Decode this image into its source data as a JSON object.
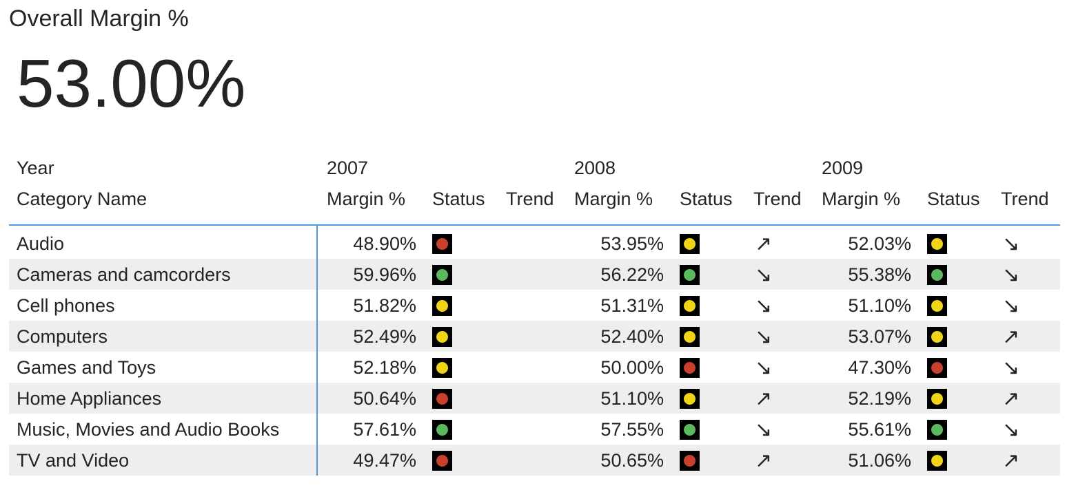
{
  "card": {
    "title": "Overall Margin %",
    "value": "53.00%"
  },
  "table": {
    "year_label": "Year",
    "row_label": "Category Name",
    "years": [
      "2007",
      "2008",
      "2009"
    ],
    "columns": [
      "Margin %",
      "Status",
      "Trend"
    ],
    "rows": [
      {
        "category": "Audio",
        "cells": [
          {
            "margin": "48.90%",
            "status": "#c9402f",
            "trend": null
          },
          {
            "margin": "53.95%",
            "status": "#f0d418",
            "trend": "↗"
          },
          {
            "margin": "52.03%",
            "status": "#f0d418",
            "trend": "↘"
          }
        ]
      },
      {
        "category": "Cameras and camcorders",
        "cells": [
          {
            "margin": "59.96%",
            "status": "#5cb85c",
            "trend": null
          },
          {
            "margin": "56.22%",
            "status": "#5cb85c",
            "trend": "↘"
          },
          {
            "margin": "55.38%",
            "status": "#5cb85c",
            "trend": "↘"
          }
        ]
      },
      {
        "category": "Cell phones",
        "cells": [
          {
            "margin": "51.82%",
            "status": "#f0d418",
            "trend": null
          },
          {
            "margin": "51.31%",
            "status": "#f0d418",
            "trend": "↘"
          },
          {
            "margin": "51.10%",
            "status": "#f0d418",
            "trend": "↘"
          }
        ]
      },
      {
        "category": "Computers",
        "cells": [
          {
            "margin": "52.49%",
            "status": "#f0d418",
            "trend": null
          },
          {
            "margin": "52.40%",
            "status": "#f0d418",
            "trend": "↘"
          },
          {
            "margin": "53.07%",
            "status": "#f0d418",
            "trend": "↗"
          }
        ]
      },
      {
        "category": "Games and Toys",
        "cells": [
          {
            "margin": "52.18%",
            "status": "#f0d418",
            "trend": null
          },
          {
            "margin": "50.00%",
            "status": "#c9402f",
            "trend": "↘"
          },
          {
            "margin": "47.30%",
            "status": "#c9402f",
            "trend": "↘"
          }
        ]
      },
      {
        "category": "Home Appliances",
        "cells": [
          {
            "margin": "50.64%",
            "status": "#c9402f",
            "trend": null
          },
          {
            "margin": "51.10%",
            "status": "#f0d418",
            "trend": "↗"
          },
          {
            "margin": "52.19%",
            "status": "#f0d418",
            "trend": "↗"
          }
        ]
      },
      {
        "category": "Music, Movies and Audio Books",
        "cells": [
          {
            "margin": "57.61%",
            "status": "#5cb85c",
            "trend": null
          },
          {
            "margin": "57.55%",
            "status": "#5cb85c",
            "trend": "↘"
          },
          {
            "margin": "55.61%",
            "status": "#5cb85c",
            "trend": "↘"
          }
        ]
      },
      {
        "category": "TV and Video",
        "cells": [
          {
            "margin": "49.47%",
            "status": "#c9402f",
            "trend": null
          },
          {
            "margin": "50.65%",
            "status": "#c9402f",
            "trend": "↗"
          },
          {
            "margin": "51.06%",
            "status": "#f0d418",
            "trend": "↗"
          }
        ]
      }
    ]
  }
}
